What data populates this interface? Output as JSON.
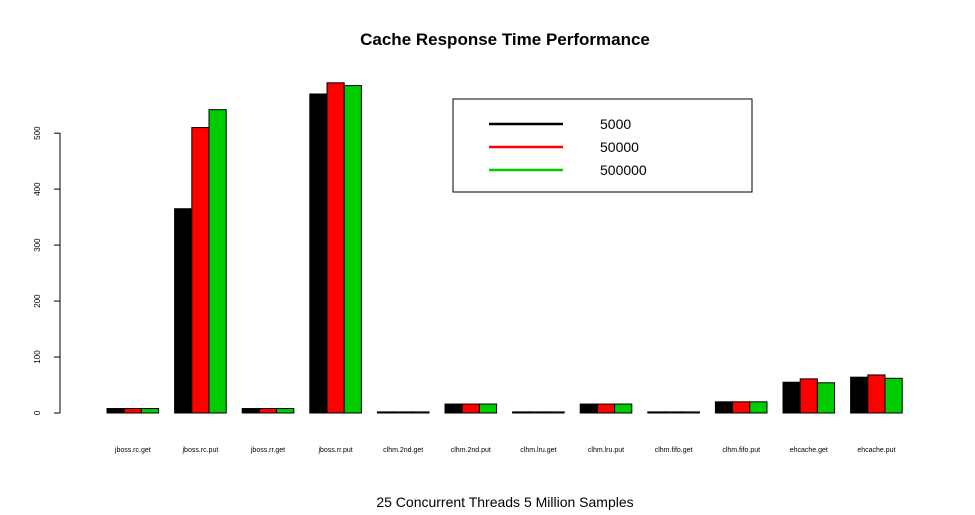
{
  "chart_data": {
    "type": "bar",
    "title": "Cache Response Time Performance",
    "xlabel": "25 Concurrent Threads 5 Million Samples",
    "ylabel": "",
    "ylim": [
      0,
      620
    ],
    "yticks": [
      0,
      100,
      200,
      300,
      400,
      500
    ],
    "categories": [
      "jboss.rc.get",
      "jboss.rc.put",
      "jboss.rr.get",
      "jboss.rr.put",
      "clhm.2nd.get",
      "clhm.2nd.put",
      "clhm.lru.get",
      "clhm.lru.put",
      "clhm.fifo.get",
      "clhm.fifo.put",
      "ehcache.get",
      "ehcache.put"
    ],
    "series": [
      {
        "name": "5000",
        "color": "#000000",
        "values": [
          8,
          365,
          8,
          570,
          2,
          16,
          2,
          16,
          2,
          20,
          55,
          64
        ]
      },
      {
        "name": "50000",
        "color": "#ff0000",
        "values": [
          8,
          510,
          8,
          590,
          2,
          16,
          2,
          16,
          2,
          20,
          61,
          68
        ]
      },
      {
        "name": "500000",
        "color": "#00cc00",
        "values": [
          8,
          542,
          8,
          585,
          2,
          16,
          2,
          16,
          2,
          20,
          54,
          62
        ]
      }
    ],
    "legend_position": "top-right",
    "grid": false
  }
}
